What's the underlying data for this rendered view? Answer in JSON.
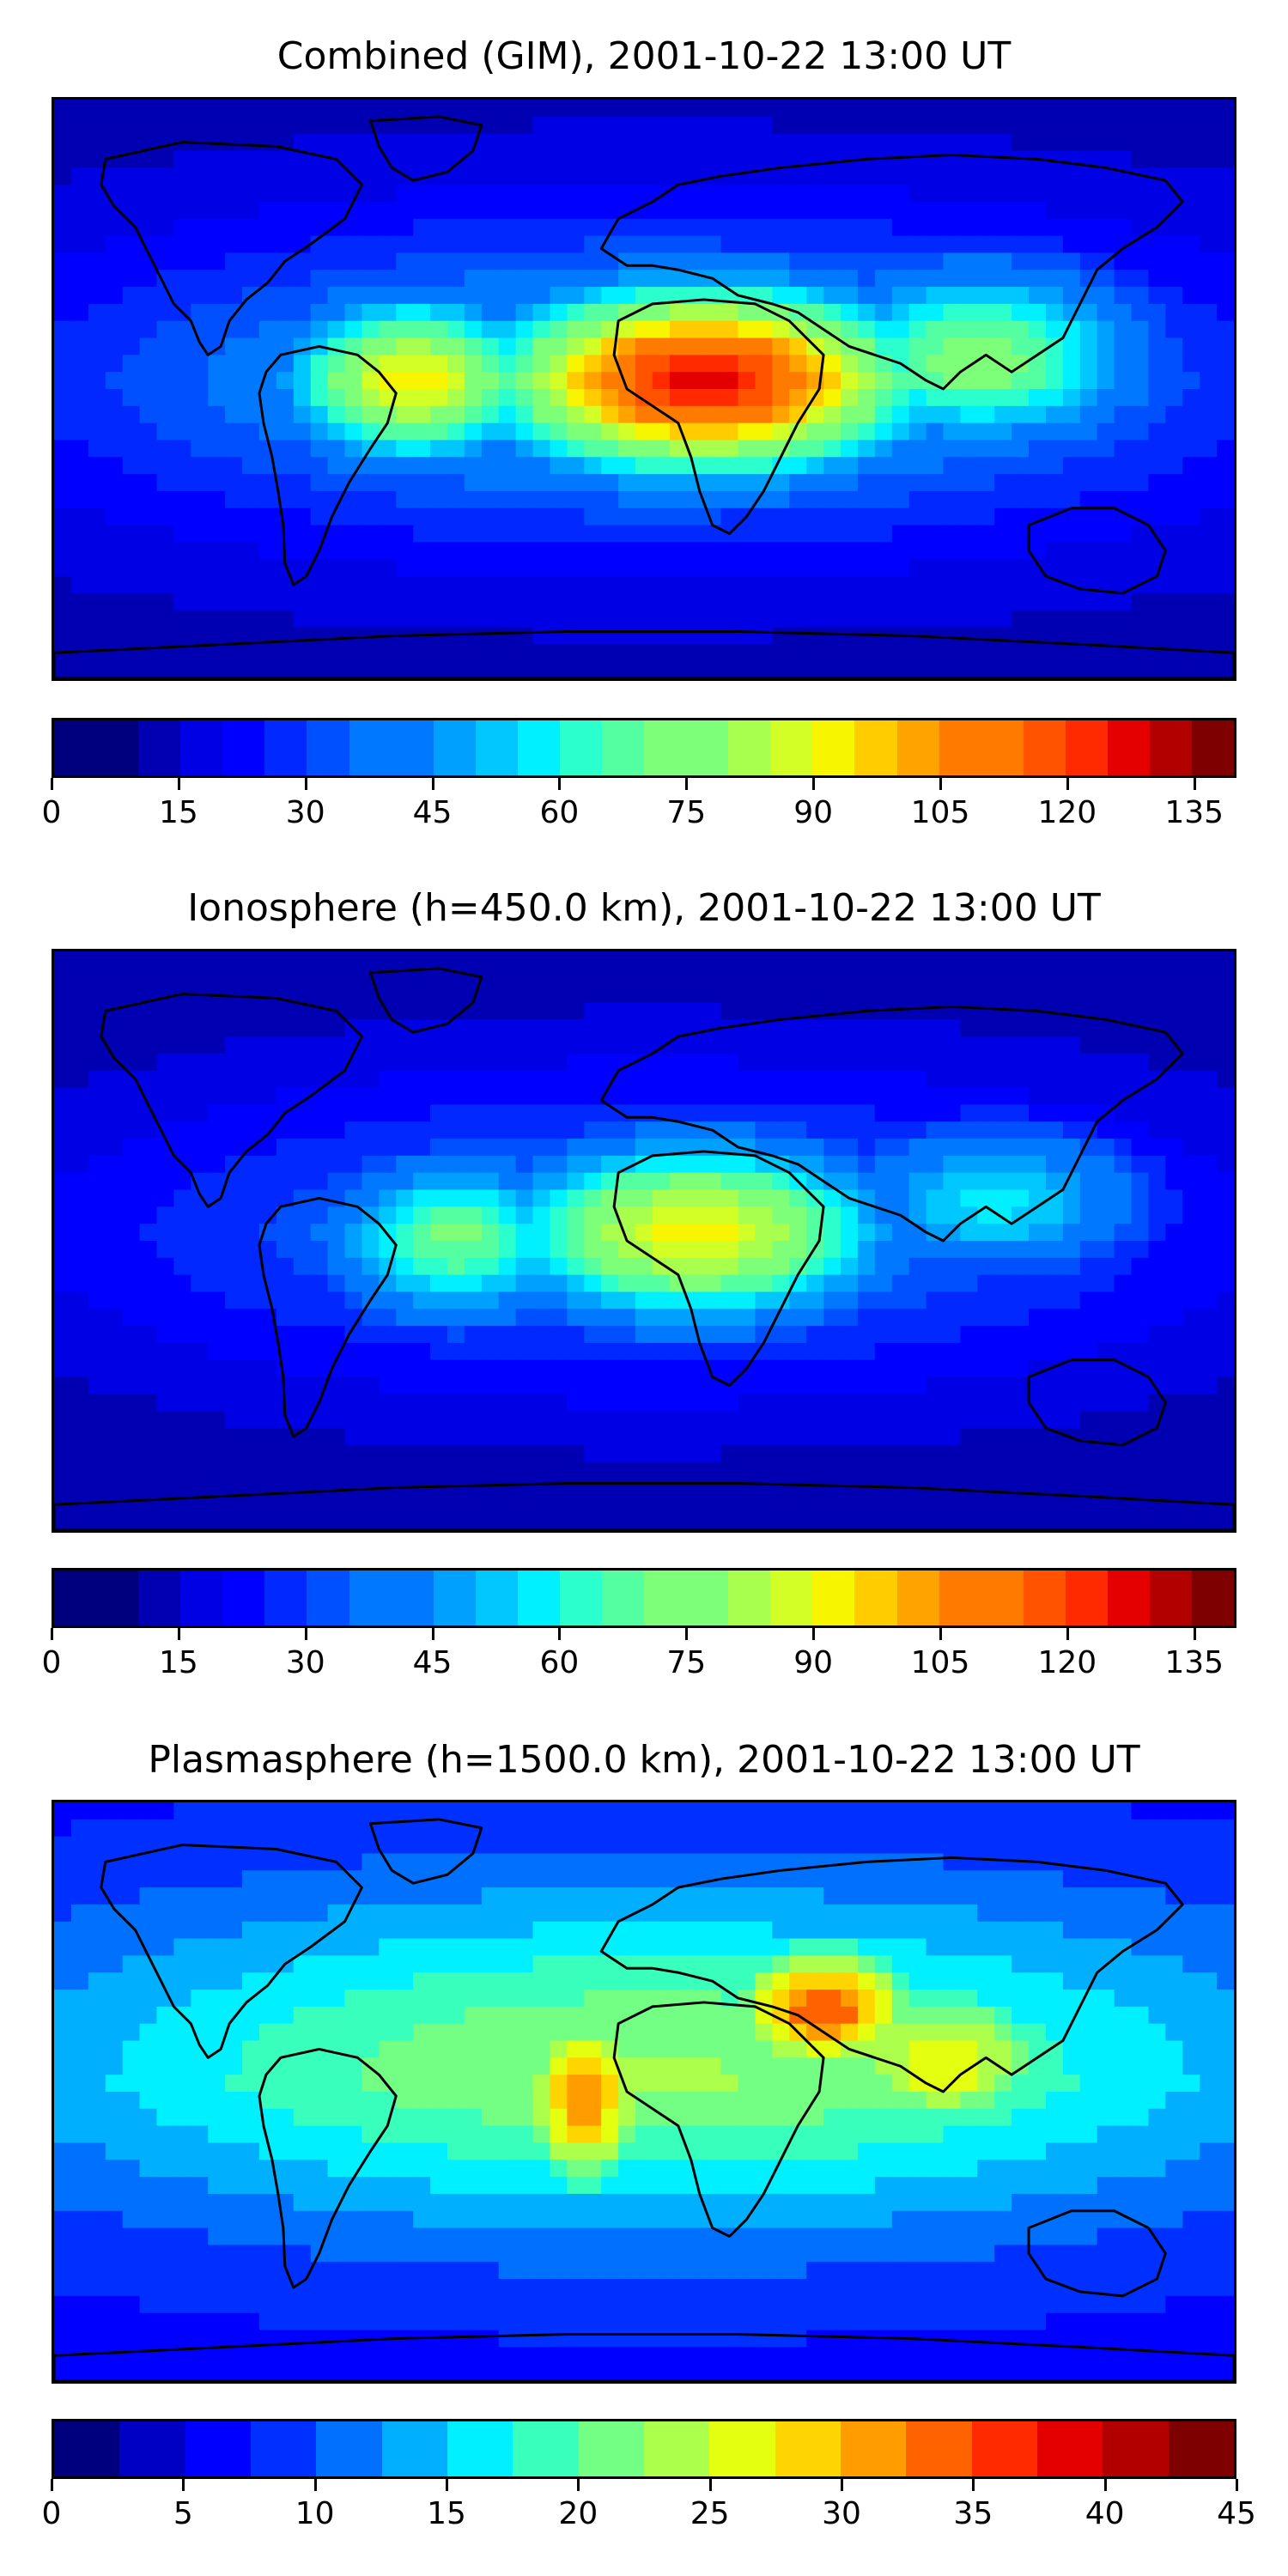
{
  "colors": [
    "#00007f",
    "#0000b2",
    "#0000e5",
    "#0000ff",
    "#0028ff",
    "#0050ff",
    "#0078ff",
    "#00a0ff",
    "#00c8ff",
    "#00f0ff",
    "#2affcd",
    "#54ffa2",
    "#7eff79",
    "#a8ff4e",
    "#d2ff25",
    "#f8f500",
    "#ffcc00",
    "#ffa300",
    "#ff7b00",
    "#ff5300",
    "#ff2a00",
    "#e50000",
    "#b20000",
    "#7f0000"
  ],
  "colors18": [
    "#00007f",
    "#0000c4",
    "#0000ff",
    "#0030ff",
    "#0070ff",
    "#00b0ff",
    "#00f0ff",
    "#39ffbd",
    "#73ff83",
    "#acff4a",
    "#e5ff10",
    "#ffd500",
    "#ff9c00",
    "#ff6300",
    "#ff2a00",
    "#e50000",
    "#b20000",
    "#7f0000"
  ],
  "panels": [
    {
      "title": "Combined (GIM), 2001-10-22 13:00 UT",
      "colorbar": {
        "min": 0,
        "max": 140,
        "levels": 28,
        "ticks": [
          "0",
          "15",
          "30",
          "45",
          "60",
          "75",
          "90",
          "105",
          "120",
          "135"
        ],
        "tick_values": [
          0,
          15,
          30,
          45,
          60,
          75,
          90,
          105,
          120,
          135
        ]
      },
      "field_peak": 128,
      "field_base": 12
    },
    {
      "title": "Ionosphere  (h=450.0 km), 2001-10-22 13:00 UT",
      "colorbar": {
        "min": 0,
        "max": 140,
        "levels": 28,
        "ticks": [
          "0",
          "15",
          "30",
          "45",
          "60",
          "75",
          "90",
          "105",
          "120",
          "135"
        ],
        "tick_values": [
          0,
          15,
          30,
          45,
          60,
          75,
          90,
          105,
          120,
          135
        ]
      },
      "field_peak": 98,
      "field_base": 10
    },
    {
      "title": "Plasmasphere (h=1500.0 km), 2001-10-22 13:00 UT",
      "colorbar": {
        "min": 0,
        "max": 45,
        "levels": 18,
        "ticks": [
          "0",
          "5",
          "10",
          "15",
          "20",
          "25",
          "30",
          "35",
          "40",
          "45"
        ],
        "tick_values": [
          0,
          5,
          10,
          15,
          20,
          25,
          30,
          35,
          40,
          45
        ]
      },
      "field_peak": 37,
      "field_base": 6
    }
  ]
}
